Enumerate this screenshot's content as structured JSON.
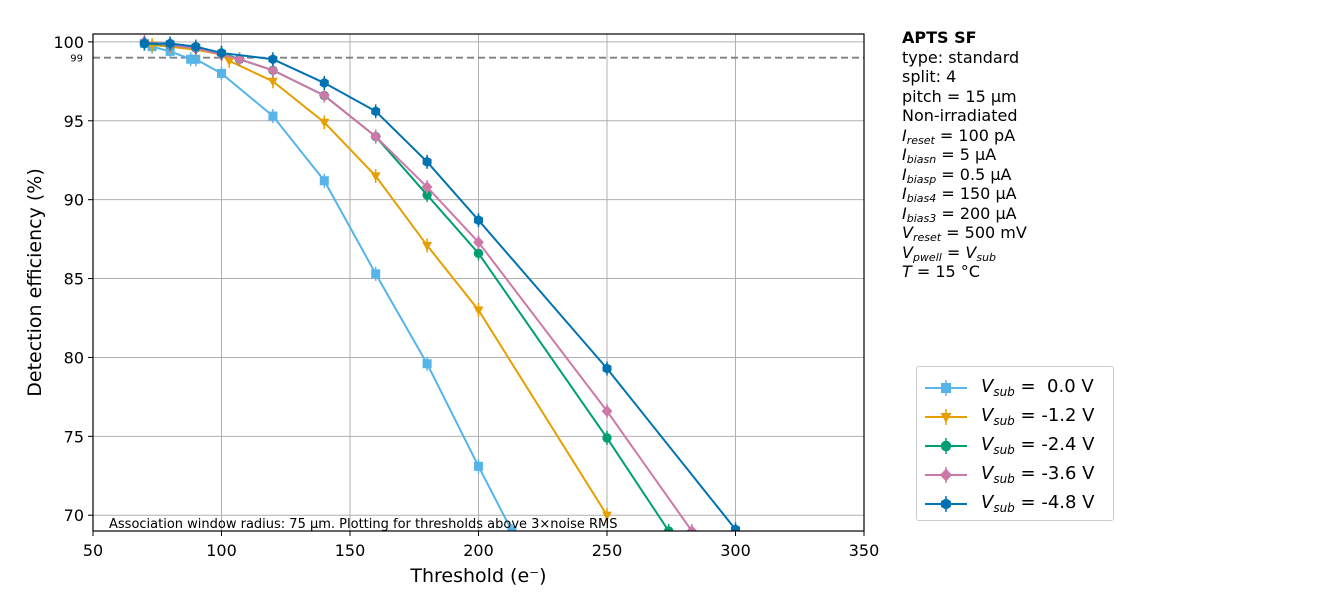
{
  "chart_data": {
    "type": "line",
    "xlabel": "Threshold (e⁻)",
    "ylabel": "Detection efficiency (%)",
    "xlim": [
      50,
      350
    ],
    "ylim": [
      69,
      100.5
    ],
    "xticks": [
      "50",
      "100",
      "150",
      "200",
      "250",
      "300",
      "350"
    ],
    "yticks": [
      "70",
      "75",
      "80",
      "85",
      "90",
      "95",
      "100"
    ],
    "reference_line": {
      "y": 99,
      "label": "99",
      "style": "dashed"
    },
    "note": "Association window radius: 75 µm. Plotting for thresholds above 3×noise RMS",
    "grid": true,
    "series": [
      {
        "name": "V_sub =  0.0 V",
        "label_var": "V",
        "label_sub": "sub",
        "label_val": " =  0.0 V",
        "color": "#56b4e9",
        "marker": "square",
        "x": [
          70,
          73,
          80,
          88,
          90,
          100,
          120,
          140,
          160,
          180,
          200,
          213
        ],
        "y": [
          99.9,
          99.7,
          99.4,
          98.9,
          98.9,
          98.0,
          95.3,
          91.2,
          85.3,
          79.6,
          73.1,
          69.0
        ]
      },
      {
        "name": "V_sub = -1.2 V",
        "label_var": "V",
        "label_sub": "sub",
        "label_val": " = -1.2 V",
        "color": "#e69f00",
        "marker": "triangle-down",
        "x": [
          70,
          73,
          80,
          90,
          100,
          103,
          120,
          140,
          160,
          180,
          200,
          250
        ],
        "y": [
          99.9,
          99.8,
          99.7,
          99.5,
          99.2,
          98.8,
          97.5,
          94.9,
          91.5,
          87.1,
          83.0,
          70.0
        ]
      },
      {
        "name": "V_sub = -2.4 V",
        "label_var": "V",
        "label_sub": "sub",
        "label_val": " = -2.4 V",
        "color": "#009e73",
        "marker": "circle",
        "x": [
          70,
          80,
          90,
          100,
          107,
          120,
          140,
          160,
          180,
          200,
          250,
          274
        ],
        "y": [
          99.9,
          99.8,
          99.6,
          99.3,
          98.9,
          98.2,
          96.6,
          94.0,
          90.3,
          86.6,
          74.9,
          69.0
        ]
      },
      {
        "name": "V_sub = -3.6 V",
        "label_var": "V",
        "label_sub": "sub",
        "label_val": " = -3.6 V",
        "color": "#cc79a7",
        "marker": "diamond",
        "x": [
          70,
          80,
          90,
          100,
          107,
          120,
          140,
          160,
          180,
          200,
          250,
          283
        ],
        "y": [
          100.0,
          99.8,
          99.6,
          99.2,
          98.9,
          98.2,
          96.6,
          94.0,
          90.8,
          87.3,
          76.6,
          69.0
        ]
      },
      {
        "name": "V_sub = -4.8 V",
        "label_var": "V",
        "label_sub": "sub",
        "label_val": " = -4.8 V",
        "color": "#0072b2",
        "marker": "hexagon",
        "x": [
          70,
          80,
          90,
          100,
          120,
          140,
          160,
          180,
          200,
          250,
          300
        ],
        "y": [
          99.9,
          99.9,
          99.7,
          99.3,
          98.9,
          97.4,
          95.6,
          92.4,
          88.7,
          79.3,
          69.1
        ]
      }
    ]
  },
  "info": {
    "title": "APTS SF",
    "type_line": "type: standard",
    "split_line": "split:  4",
    "pitch_line": "pitch = 15 µm",
    "irradiation": "Non-irradiated",
    "params": [
      {
        "var": "I",
        "sub": "reset",
        "val": " = 100 pA"
      },
      {
        "var": "I",
        "sub": "biasn",
        "val": " = 5 µA"
      },
      {
        "var": "I",
        "sub": "biasp",
        "val": " = 0.5 µA"
      },
      {
        "var": "I",
        "sub": "bias4",
        "val": " = 150 µA"
      },
      {
        "var": "I",
        "sub": "bias3",
        "val": " = 200 µA"
      },
      {
        "var": "V",
        "sub": "reset",
        "val": " = 500 mV"
      }
    ],
    "pwell": {
      "var": "V",
      "sub": "pwell",
      "eq": " = ",
      "var2": "V",
      "sub2": "sub"
    },
    "temp": {
      "var": "T",
      "val": " = 15 °C"
    }
  }
}
